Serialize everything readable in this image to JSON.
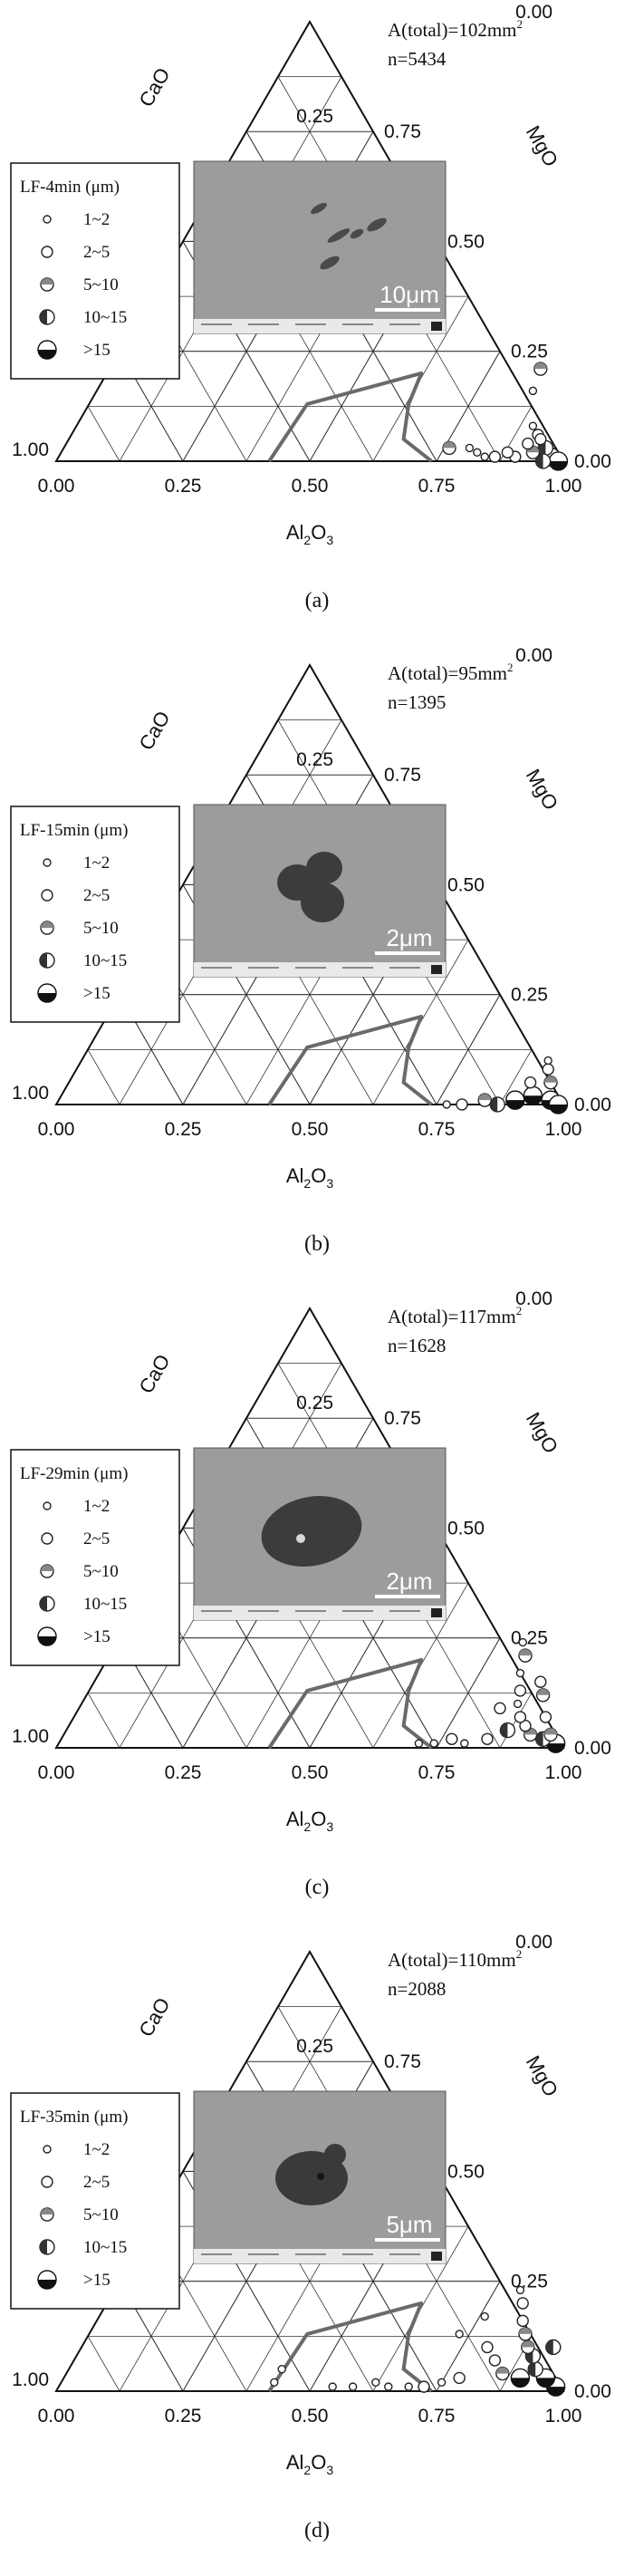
{
  "chart_data": [
    {
      "type": "scatter",
      "panel": "(a)",
      "area_label": "A(total)=102mm",
      "area_sup": "2",
      "count_label": "n=5434",
      "legend_title": "LF-4min (μm)",
      "legend_items": [
        "1~2",
        "2~5",
        "5~10",
        "10~15",
        ">15"
      ],
      "scale_bar": "10μm",
      "axes": {
        "a": "Al",
        "a_sub": "2",
        "a_tail": "O",
        "a_sub2": "3",
        "b": "CaO",
        "c": "MgO",
        "ticks": [
          "0.00",
          "0.25",
          "0.50",
          "0.75",
          "1.00"
        ]
      },
      "points": [
        {
          "al": 0.97,
          "mgo": 0.01,
          "s": 4
        },
        {
          "al": 0.95,
          "mgo": 0.03,
          "s": 3
        },
        {
          "al": 0.93,
          "mgo": 0.02,
          "s": 2
        },
        {
          "al": 0.9,
          "mgo": 0.01,
          "s": 1
        },
        {
          "al": 0.88,
          "mgo": 0.02,
          "s": 1
        },
        {
          "al": 0.86,
          "mgo": 0.01,
          "s": 1
        },
        {
          "al": 0.84,
          "mgo": 0.01,
          "s": 0
        },
        {
          "al": 0.82,
          "mgo": 0.02,
          "s": 0
        },
        {
          "al": 0.92,
          "mgo": 0.06,
          "s": 1
        },
        {
          "al": 0.9,
          "mgo": 0.08,
          "s": 0
        },
        {
          "al": 0.93,
          "mgo": 0.05,
          "s": 1
        },
        {
          "al": 0.86,
          "mgo": 0.16,
          "s": 0
        },
        {
          "al": 0.85,
          "mgo": 0.21,
          "s": 2
        },
        {
          "al": 0.76,
          "mgo": 0.03,
          "s": 2
        },
        {
          "al": 0.99,
          "mgo": 0.0,
          "s": 4
        },
        {
          "al": 0.96,
          "mgo": 0.0,
          "s": 3
        },
        {
          "al": 0.8,
          "mgo": 0.03,
          "s": 0
        },
        {
          "al": 0.91,
          "mgo": 0.04,
          "s": 1
        }
      ]
    },
    {
      "type": "scatter",
      "panel": "(b)",
      "area_label": "A(total)=95mm",
      "area_sup": "2",
      "count_label": "n=1395",
      "legend_title": "LF-15min (μm)",
      "legend_items": [
        "1~2",
        "2~5",
        "5~10",
        "10~15",
        ">15"
      ],
      "scale_bar": "2μm",
      "axes": {
        "a": "Al",
        "a_sub": "2",
        "a_tail": "O",
        "a_sub2": "3",
        "b": "CaO",
        "c": "MgO",
        "ticks": [
          "0.00",
          "0.25",
          "0.50",
          "0.75",
          "1.00"
        ]
      },
      "points": [
        {
          "al": 0.97,
          "mgo": 0.01,
          "s": 4
        },
        {
          "al": 0.93,
          "mgo": 0.02,
          "s": 4
        },
        {
          "al": 0.9,
          "mgo": 0.01,
          "s": 4
        },
        {
          "al": 0.87,
          "mgo": 0.0,
          "s": 3
        },
        {
          "al": 0.84,
          "mgo": 0.01,
          "s": 2
        },
        {
          "al": 0.8,
          "mgo": 0.0,
          "s": 1
        },
        {
          "al": 0.77,
          "mgo": 0.0,
          "s": 0
        },
        {
          "al": 0.95,
          "mgo": 0.05,
          "s": 2
        },
        {
          "al": 0.93,
          "mgo": 0.08,
          "s": 1
        },
        {
          "al": 0.92,
          "mgo": 0.1,
          "s": 0
        },
        {
          "al": 0.99,
          "mgo": 0.0,
          "s": 4
        },
        {
          "al": 0.91,
          "mgo": 0.05,
          "s": 1
        }
      ]
    },
    {
      "type": "scatter",
      "panel": "(c)",
      "area_label": "A(total)=117mm",
      "area_sup": "2",
      "count_label": "n=1628",
      "legend_title": "LF-29min (μm)",
      "legend_items": [
        "1~2",
        "2~5",
        "5~10",
        "10~15",
        ">15"
      ],
      "scale_bar": "2μm",
      "axes": {
        "a": "Al",
        "a_sub": "2",
        "a_tail": "O",
        "a_sub2": "3",
        "b": "CaO",
        "c": "MgO",
        "ticks": [
          "0.00",
          "0.25",
          "0.50",
          "0.75",
          "1.00"
        ]
      },
      "points": [
        {
          "al": 0.98,
          "mgo": 0.01,
          "s": 4
        },
        {
          "al": 0.95,
          "mgo": 0.02,
          "s": 3
        },
        {
          "al": 0.92,
          "mgo": 0.03,
          "s": 2
        },
        {
          "al": 0.9,
          "mgo": 0.05,
          "s": 1
        },
        {
          "al": 0.88,
          "mgo": 0.07,
          "s": 1
        },
        {
          "al": 0.86,
          "mgo": 0.1,
          "s": 0
        },
        {
          "al": 0.85,
          "mgo": 0.13,
          "s": 1
        },
        {
          "al": 0.83,
          "mgo": 0.17,
          "s": 0
        },
        {
          "al": 0.82,
          "mgo": 0.21,
          "s": 2
        },
        {
          "al": 0.8,
          "mgo": 0.24,
          "s": 0
        },
        {
          "al": 0.88,
          "mgo": 0.15,
          "s": 1
        },
        {
          "al": 0.9,
          "mgo": 0.12,
          "s": 2
        },
        {
          "al": 0.93,
          "mgo": 0.07,
          "s": 1
        },
        {
          "al": 0.84,
          "mgo": 0.02,
          "s": 1
        },
        {
          "al": 0.8,
          "mgo": 0.01,
          "s": 0
        },
        {
          "al": 0.77,
          "mgo": 0.02,
          "s": 1
        },
        {
          "al": 0.74,
          "mgo": 0.01,
          "s": 0
        },
        {
          "al": 0.71,
          "mgo": 0.01,
          "s": 0
        },
        {
          "al": 0.87,
          "mgo": 0.04,
          "s": 3
        },
        {
          "al": 0.83,
          "mgo": 0.09,
          "s": 1
        },
        {
          "al": 0.96,
          "mgo": 0.03,
          "s": 2
        }
      ]
    },
    {
      "type": "scatter",
      "panel": "(d)",
      "area_label": "A(total)=110mm",
      "area_sup": "2",
      "count_label": "n=2088",
      "legend_title": "LF-35min (μm)",
      "legend_items": [
        "1~2",
        "2~5",
        "5~10",
        "10~15",
        ">15"
      ],
      "scale_bar": "5μm",
      "axes": {
        "a": "Al",
        "a_sub": "2",
        "a_tail": "O",
        "a_sub2": "3",
        "b": "CaO",
        "c": "MgO",
        "ticks": [
          "0.00",
          "0.25",
          "0.50",
          "0.75",
          "1.00"
        ]
      },
      "points": [
        {
          "al": 0.98,
          "mgo": 0.01,
          "s": 4
        },
        {
          "al": 0.95,
          "mgo": 0.03,
          "s": 4
        },
        {
          "al": 0.92,
          "mgo": 0.05,
          "s": 3
        },
        {
          "al": 0.9,
          "mgo": 0.08,
          "s": 3
        },
        {
          "al": 0.88,
          "mgo": 0.1,
          "s": 2
        },
        {
          "al": 0.86,
          "mgo": 0.13,
          "s": 2
        },
        {
          "al": 0.84,
          "mgo": 0.16,
          "s": 1
        },
        {
          "al": 0.82,
          "mgo": 0.2,
          "s": 1
        },
        {
          "al": 0.8,
          "mgo": 0.23,
          "s": 0
        },
        {
          "al": 0.86,
          "mgo": 0.04,
          "s": 2
        },
        {
          "al": 0.83,
          "mgo": 0.07,
          "s": 1
        },
        {
          "al": 0.8,
          "mgo": 0.1,
          "s": 1
        },
        {
          "al": 0.78,
          "mgo": 0.03,
          "s": 1
        },
        {
          "al": 0.75,
          "mgo": 0.02,
          "s": 0
        },
        {
          "al": 0.72,
          "mgo": 0.01,
          "s": 1
        },
        {
          "al": 0.69,
          "mgo": 0.01,
          "s": 0
        },
        {
          "al": 0.65,
          "mgo": 0.01,
          "s": 0
        },
        {
          "al": 0.62,
          "mgo": 0.02,
          "s": 0
        },
        {
          "al": 0.58,
          "mgo": 0.01,
          "s": 0
        },
        {
          "al": 0.54,
          "mgo": 0.01,
          "s": 0
        },
        {
          "al": 0.9,
          "mgo": 0.03,
          "s": 4
        },
        {
          "al": 0.93,
          "mgo": 0.1,
          "s": 3
        },
        {
          "al": 0.76,
          "mgo": 0.17,
          "s": 0
        },
        {
          "al": 0.73,
          "mgo": 0.13,
          "s": 0
        },
        {
          "al": 0.42,
          "mgo": 0.05,
          "s": 0
        },
        {
          "al": 0.42,
          "mgo": 0.02,
          "s": 0
        }
      ]
    }
  ]
}
